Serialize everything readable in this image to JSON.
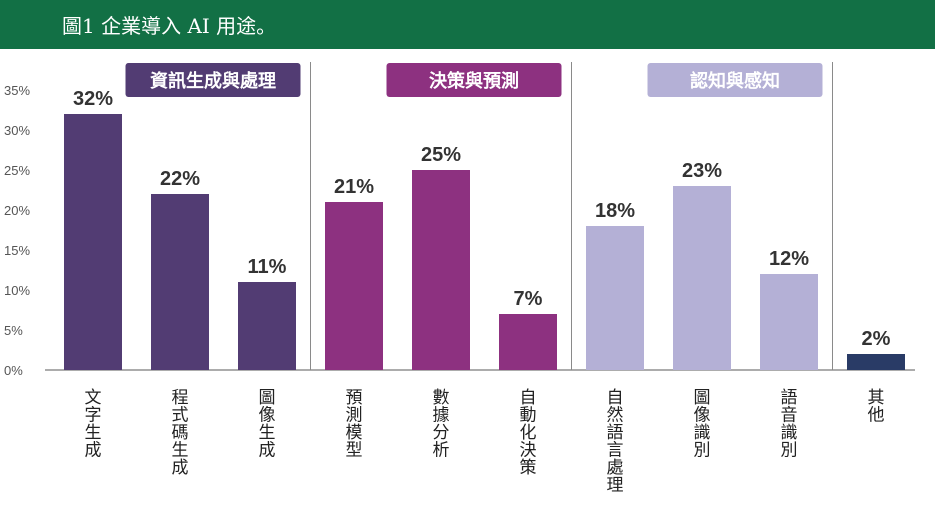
{
  "header": {
    "title": "圖1 企業導入 AI 用途。"
  },
  "colors": {
    "header_bg": "#127045",
    "group1": "#523c73",
    "group2": "#8d3180",
    "group3": "#b4b0d6",
    "other": "#293b66"
  },
  "chart_data": {
    "type": "bar",
    "ylim": [
      0,
      35
    ],
    "yticks": [
      "0%",
      "5%",
      "10%",
      "15%",
      "20%",
      "25%",
      "30%",
      "35%"
    ],
    "ytick_values": [
      0,
      5,
      10,
      15,
      20,
      25,
      30,
      35
    ],
    "grid": false,
    "groups": [
      {
        "label": "資訊生成與處理",
        "color": "#523c73",
        "label_color": "#ffffff",
        "categories": [
          "文字生成",
          "程式碼生成",
          "圖像生成"
        ],
        "values": [
          32,
          22,
          11
        ],
        "value_labels": [
          "32%",
          "22%",
          "11%"
        ]
      },
      {
        "label": "決策與預測",
        "color": "#8d3180",
        "label_color": "#ffffff",
        "categories": [
          "預測模型",
          "數據分析",
          "自動化決策"
        ],
        "values": [
          21,
          25,
          7
        ],
        "value_labels": [
          "21%",
          "25%",
          "7%"
        ]
      },
      {
        "label": "認知與感知",
        "color": "#b4b0d6",
        "label_color": "#ffffff",
        "categories": [
          "自然語言處理",
          "圖像識別",
          "語音識別"
        ],
        "values": [
          18,
          23,
          12
        ],
        "value_labels": [
          "18%",
          "23%",
          "12%"
        ]
      },
      {
        "label": "",
        "color": "#293b66",
        "categories": [
          "其他"
        ],
        "values": [
          2
        ],
        "value_labels": [
          "2%"
        ]
      }
    ]
  }
}
